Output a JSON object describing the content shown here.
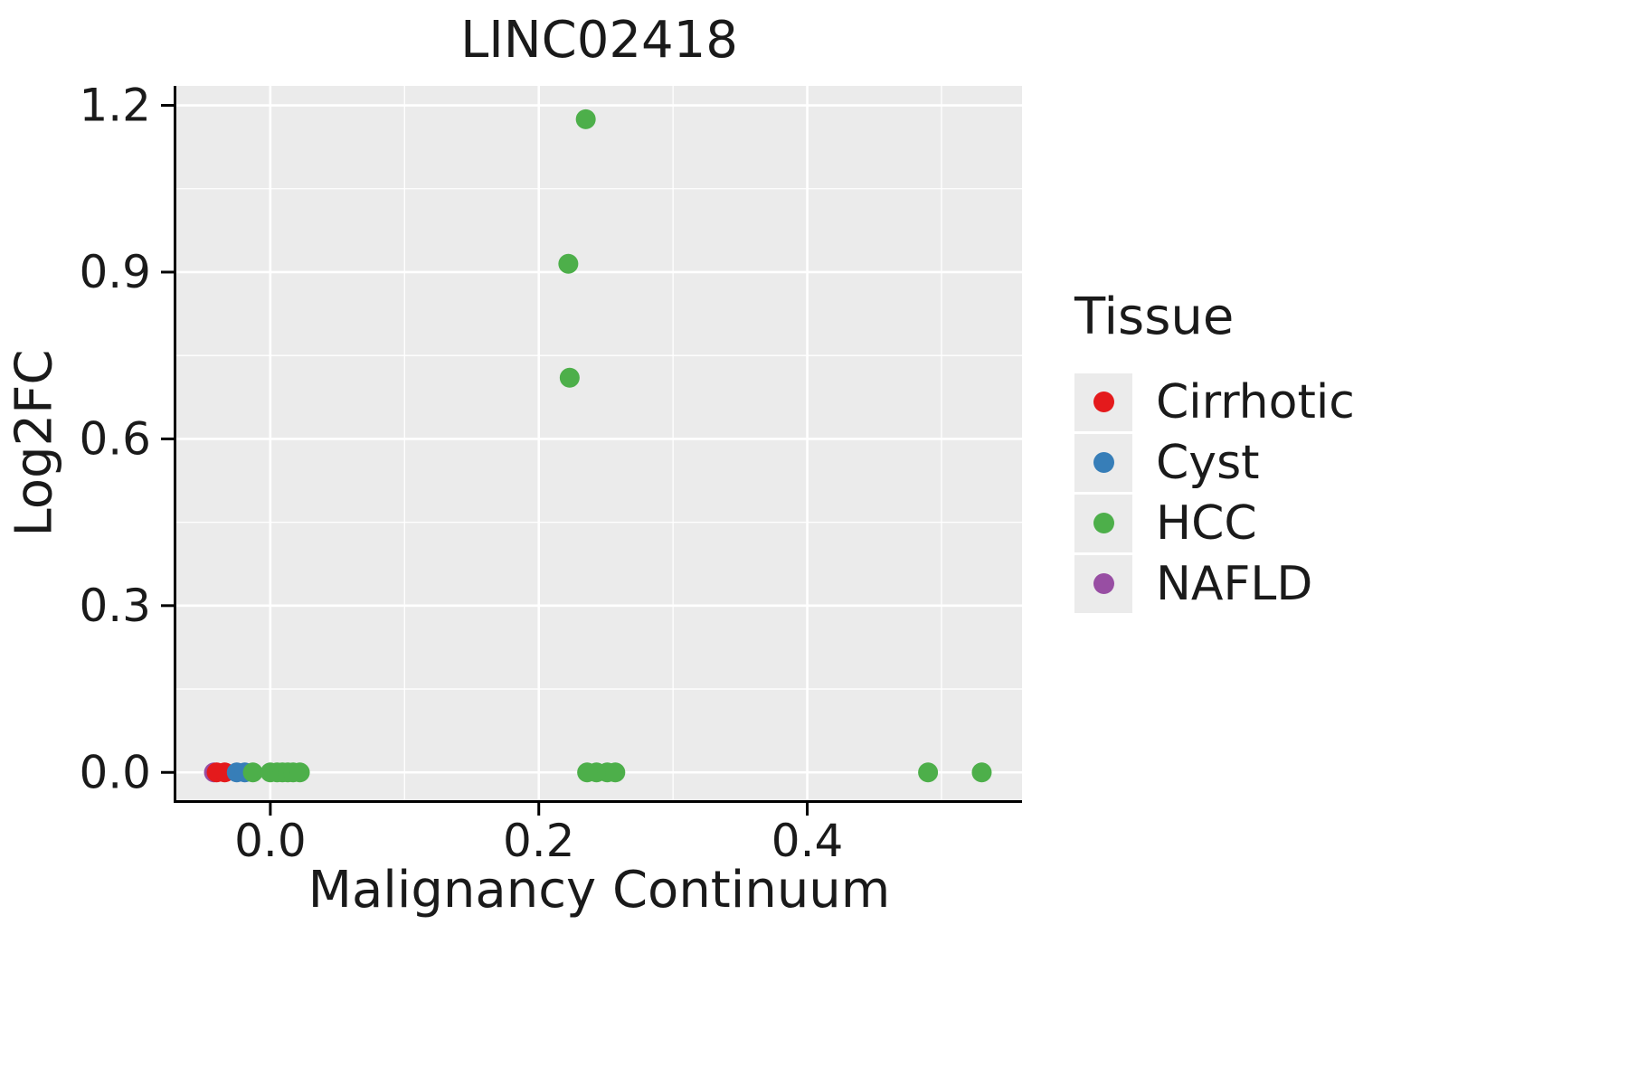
{
  "chart_data": {
    "type": "scatter",
    "title": "LINC02418",
    "xlabel": "Malignancy Continuum",
    "ylabel": "Log2FC",
    "xlim": [
      -0.07,
      0.56
    ],
    "ylim": [
      -0.05,
      1.235
    ],
    "xticks": [
      0.0,
      0.2,
      0.4
    ],
    "xtick_labels": [
      "0.0",
      "0.2",
      "0.4"
    ],
    "xticks_minor": [
      0.1,
      0.3,
      0.5
    ],
    "yticks": [
      0.0,
      0.3,
      0.6,
      0.9,
      1.2
    ],
    "ytick_labels": [
      "0.0",
      "0.3",
      "0.6",
      "0.9",
      "1.2"
    ],
    "yticks_minor": [
      0.15,
      0.45,
      0.75,
      1.05
    ],
    "panel_bg": "#ebebeb",
    "grid_color": "#ffffff",
    "axis_color": "#000000",
    "legend": {
      "title": "Tissue",
      "entries": [
        {
          "label": "Cirrhotic",
          "color": "#e41a1c"
        },
        {
          "label": "Cyst",
          "color": "#377eb8"
        },
        {
          "label": "HCC",
          "color": "#4daf4a"
        },
        {
          "label": "NAFLD",
          "color": "#984ea3"
        }
      ]
    },
    "series": [
      {
        "name": "NAFLD",
        "color": "#984ea3",
        "points": [
          [
            -0.042,
            0.0
          ]
        ]
      },
      {
        "name": "Cirrhotic",
        "color": "#e41a1c",
        "points": [
          [
            -0.04,
            0.0
          ],
          [
            -0.034,
            0.0
          ]
        ]
      },
      {
        "name": "Cyst",
        "color": "#377eb8",
        "points": [
          [
            -0.025,
            0.0
          ],
          [
            -0.019,
            0.0
          ]
        ]
      },
      {
        "name": "HCC",
        "color": "#4daf4a",
        "points": [
          [
            -0.013,
            0.0
          ],
          [
            0.0,
            0.0
          ],
          [
            0.005,
            0.0
          ],
          [
            0.009,
            0.0
          ],
          [
            0.013,
            0.0
          ],
          [
            0.017,
            0.0
          ],
          [
            0.022,
            0.0
          ],
          [
            0.236,
            0.0
          ],
          [
            0.243,
            0.0
          ],
          [
            0.251,
            0.0
          ],
          [
            0.257,
            0.0
          ],
          [
            0.49,
            0.0
          ],
          [
            0.53,
            0.0
          ],
          [
            0.222,
            0.915
          ],
          [
            0.223,
            0.71
          ],
          [
            0.235,
            1.175
          ]
        ]
      }
    ]
  }
}
